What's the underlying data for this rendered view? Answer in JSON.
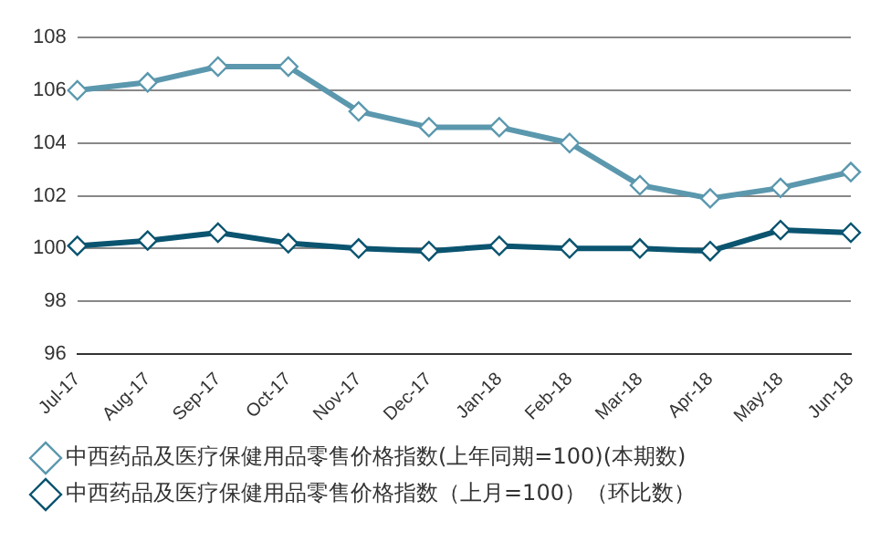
{
  "chart_data": {
    "type": "line",
    "categories": [
      "Jul-17",
      "Aug-17",
      "Sep-17",
      "Oct-17",
      "Nov-17",
      "Dec-17",
      "Jan-18",
      "Feb-18",
      "Mar-18",
      "Apr-18",
      "May-18",
      "Jun-18"
    ],
    "series": [
      {
        "name": "中西药品及医疗保健用品零售价格指数(上年同期=100)(本期数)",
        "color": "#5b98ae",
        "values": [
          106.0,
          106.3,
          106.9,
          106.9,
          105.2,
          104.6,
          104.6,
          104.0,
          102.4,
          101.9,
          102.3,
          102.9
        ]
      },
      {
        "name": "中西药品及医疗保健用品零售价格指数（上月=100）（环比数）",
        "color": "#0a5470",
        "values": [
          100.1,
          100.3,
          100.6,
          100.2,
          100.0,
          99.9,
          100.1,
          100.0,
          100.0,
          99.9,
          100.7,
          100.6
        ]
      }
    ],
    "ylim": [
      96,
      108
    ],
    "yticks": [
      96,
      98,
      100,
      102,
      104,
      106,
      108
    ],
    "grid": "y",
    "legend": "bottom",
    "marker": "diamond",
    "line_style": "solid"
  }
}
